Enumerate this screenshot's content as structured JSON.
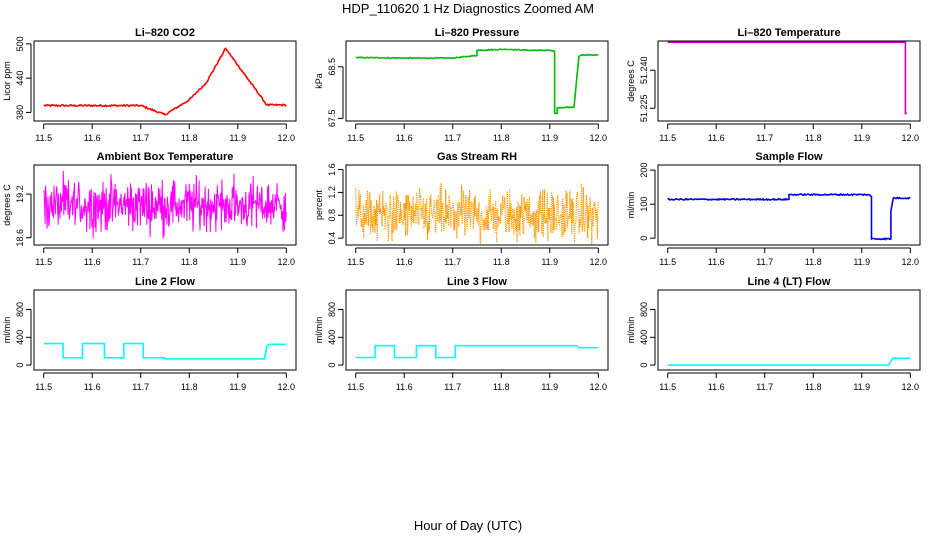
{
  "figure": {
    "title": "HDP_110620  1 Hz Diagnostics Zoomed AM",
    "xlabel": "Hour of Day (UTC)"
  },
  "chart_data": [
    {
      "type": "line",
      "title": "Li–820 CO2",
      "ylabel": "Licor ppm",
      "color": "#ff0000",
      "xlim": [
        11.48,
        12.02
      ],
      "ylim": [
        365,
        505
      ],
      "xticks": [
        "11.5",
        "11.6",
        "11.7",
        "11.8",
        "11.9",
        "12.0"
      ],
      "yticks": [
        "380",
        "440",
        "500"
      ],
      "ytick_values": [
        380,
        440,
        500
      ],
      "series": [
        {
          "x": [
            11.5,
            11.7,
            11.7,
            11.75,
            11.75,
            11.8,
            11.8,
            11.835,
            11.835,
            11.875,
            11.875,
            11.96,
            11.96,
            12.0
          ],
          "y": [
            392,
            392,
            392,
            376,
            376,
            402,
            402,
            432,
            432,
            492,
            492,
            393,
            393,
            393
          ],
          "noise": 1.5
        }
      ]
    },
    {
      "type": "line",
      "title": "Li–820 Pressure",
      "ylabel": "kPa",
      "color": "#00bb00",
      "xlim": [
        11.48,
        12.02
      ],
      "ylim": [
        67.45,
        69.0
      ],
      "xticks": [
        "11.5",
        "11.6",
        "11.7",
        "11.8",
        "11.9",
        "12.0"
      ],
      "yticks": [
        "67.5",
        "68.5"
      ],
      "ytick_values": [
        67.5,
        68.5
      ],
      "series": [
        {
          "x": [
            11.5,
            11.6,
            11.7,
            11.75,
            11.75,
            11.81,
            11.86,
            11.9,
            11.91,
            11.91,
            11.915,
            11.915,
            11.95,
            11.96,
            11.965,
            12.0
          ],
          "y": [
            68.68,
            68.67,
            68.67,
            68.72,
            68.82,
            68.84,
            68.82,
            68.82,
            68.8,
            67.6,
            67.6,
            67.7,
            67.72,
            68.7,
            68.73,
            68.73
          ],
          "noise": 0.008
        }
      ]
    },
    {
      "type": "line",
      "title": "Li–820 Temperature",
      "ylabel": "degrees C",
      "color": "#cc00cc",
      "xlim": [
        11.48,
        12.02
      ],
      "ylim": [
        51.22,
        51.2515
      ],
      "xticks": [
        "11.5",
        "11.6",
        "11.7",
        "11.8",
        "11.9",
        "12.0"
      ],
      "yticks": [
        "51.225",
        "51.240"
      ],
      "ytick_values": [
        51.225,
        51.24
      ],
      "series": [
        {
          "x": [
            11.5,
            11.99,
            11.99,
            11.993
          ],
          "y": [
            51.251,
            51.251,
            51.223,
            51.223
          ],
          "noise": 0
        }
      ]
    },
    {
      "type": "line",
      "title": "Ambient Box Temperature",
      "ylabel": "degrees C",
      "color": "#ff00ff",
      "xlim": [
        11.48,
        12.02
      ],
      "ylim": [
        18.5,
        19.6
      ],
      "xticks": [
        "11.5",
        "11.6",
        "11.7",
        "11.8",
        "11.9",
        "12.0"
      ],
      "yticks": [
        "18.6",
        "19.2"
      ],
      "ytick_values": [
        18.6,
        19.2
      ],
      "series": [
        {
          "x": [
            11.5,
            12.0
          ],
          "y": [
            19.05,
            19.05
          ],
          "noise": 0.17,
          "dense": true
        }
      ]
    },
    {
      "type": "line",
      "title": "Gas Stream RH",
      "ylabel": "percent",
      "color": "#ff9900",
      "xlim": [
        11.48,
        12.02
      ],
      "ylim": [
        0.28,
        1.68
      ],
      "xticks": [
        "11.5",
        "11.6",
        "11.7",
        "11.8",
        "11.9",
        "12.0"
      ],
      "yticks": [
        "0.4",
        "0.8",
        "1.2",
        "1.6"
      ],
      "ytick_values": [
        0.4,
        0.8,
        1.2,
        1.6
      ],
      "series": [
        {
          "x": [
            11.5,
            12.0
          ],
          "y": [
            0.8,
            0.8
          ],
          "noise": 0.22,
          "dense": true,
          "dotted": true
        }
      ]
    },
    {
      "type": "line",
      "title": "Sample Flow",
      "ylabel": "ml/min",
      "color": "#0000ee",
      "xlim": [
        11.48,
        12.02
      ],
      "ylim": [
        -20,
        215
      ],
      "xticks": [
        "11.5",
        "11.6",
        "11.7",
        "11.8",
        "11.9",
        "12.0"
      ],
      "yticks": [
        "0",
        "100",
        "200"
      ],
      "ytick_values": [
        0,
        100,
        200
      ],
      "series": [
        {
          "x": [
            11.5,
            11.75,
            11.75,
            11.915,
            11.92,
            11.92,
            11.96,
            11.96,
            11.965,
            12.0
          ],
          "y": [
            114,
            114,
            128,
            128,
            122,
            -2,
            -2,
            80,
            118,
            118
          ],
          "noise": 2
        }
      ]
    },
    {
      "type": "line",
      "title": "Line 2 Flow",
      "ylabel": "ml/min",
      "color": "#00ffff",
      "xlim": [
        11.48,
        12.02
      ],
      "ylim": [
        -70,
        1080
      ],
      "xticks": [
        "11.5",
        "11.6",
        "11.7",
        "11.8",
        "11.9",
        "12.0"
      ],
      "yticks": [
        "0",
        "400",
        "800"
      ],
      "ytick_values": [
        0,
        400,
        800
      ],
      "series": [
        {
          "x": [
            11.5,
            11.54,
            11.54,
            11.58,
            11.58,
            11.625,
            11.625,
            11.665,
            11.665,
            11.705,
            11.705,
            11.75,
            11.75,
            11.955,
            11.96,
            11.965,
            12.0
          ],
          "y": [
            310,
            310,
            105,
            105,
            310,
            310,
            105,
            105,
            310,
            310,
            105,
            105,
            90,
            90,
            280,
            300,
            300
          ],
          "noise": 0
        }
      ]
    },
    {
      "type": "line",
      "title": "Line 3 Flow",
      "ylabel": "ml/min",
      "color": "#00ffff",
      "xlim": [
        11.48,
        12.02
      ],
      "ylim": [
        -70,
        1080
      ],
      "xticks": [
        "11.5",
        "11.6",
        "11.7",
        "11.8",
        "11.9",
        "12.0"
      ],
      "yticks": [
        "0",
        "400",
        "800"
      ],
      "ytick_values": [
        0,
        400,
        800
      ],
      "series": [
        {
          "x": [
            11.5,
            11.54,
            11.54,
            11.58,
            11.58,
            11.625,
            11.625,
            11.665,
            11.665,
            11.705,
            11.705,
            11.955,
            11.96,
            12.0
          ],
          "y": [
            110,
            110,
            280,
            280,
            110,
            110,
            280,
            280,
            110,
            110,
            280,
            280,
            250,
            250
          ],
          "noise": 0
        }
      ]
    },
    {
      "type": "line",
      "title": "Line 4 (LT) Flow",
      "ylabel": "ml/min",
      "color": "#00ffff",
      "xlim": [
        11.48,
        12.02
      ],
      "ylim": [
        -70,
        1080
      ],
      "xticks": [
        "11.5",
        "11.6",
        "11.7",
        "11.8",
        "11.9",
        "12.0"
      ],
      "yticks": [
        "0",
        "400",
        "800"
      ],
      "ytick_values": [
        0,
        400,
        800
      ],
      "series": [
        {
          "x": [
            11.5,
            11.955,
            11.96,
            11.965,
            12.0
          ],
          "y": [
            0,
            0,
            60,
            100,
            100
          ],
          "noise": 0
        }
      ]
    }
  ]
}
